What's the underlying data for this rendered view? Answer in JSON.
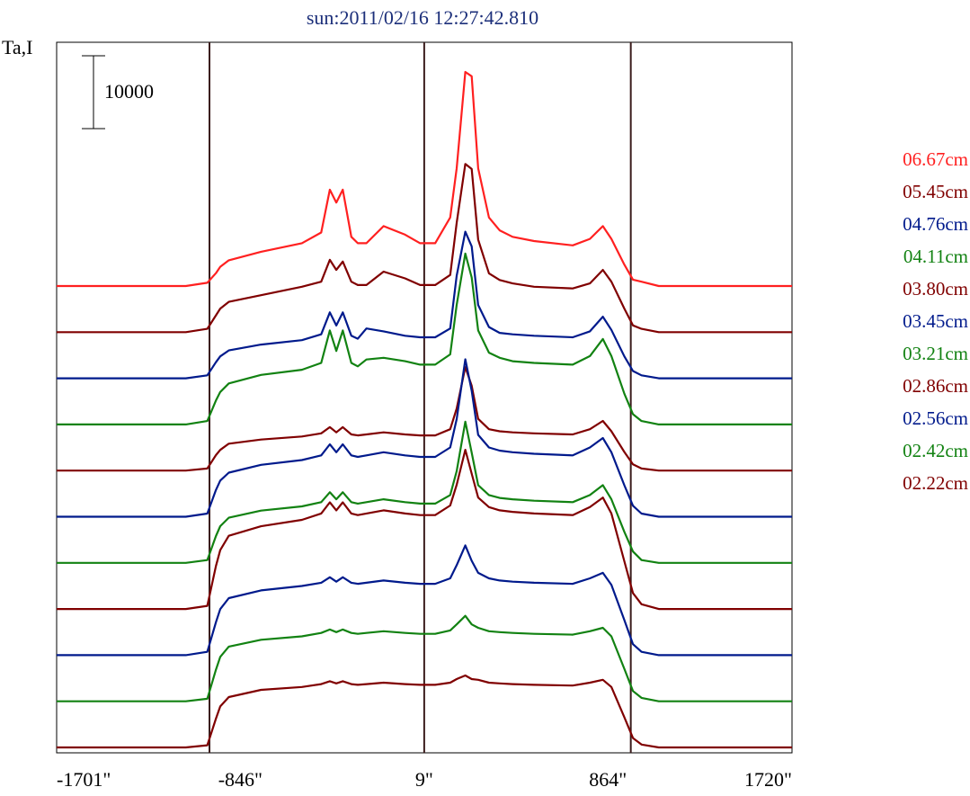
{
  "chart_data": {
    "type": "line",
    "title": "sun:2011/02/16 12:27:42.810",
    "ylabel": "Ta,I",
    "xlabel": "",
    "xlim": [
      -1701,
      1720
    ],
    "x_ticks": [
      {
        "value": -1701,
        "label": "-1701\""
      },
      {
        "value": -846,
        "label": "-846\""
      },
      {
        "value": 9,
        "label": "9\""
      },
      {
        "value": 864,
        "label": "864\""
      },
      {
        "value": 1720,
        "label": "1720\""
      }
    ],
    "vertical_lines": [
      -990,
      9,
      970
    ],
    "scale_bar": {
      "value": 10000,
      "label": "10000"
    },
    "legend_position": "right",
    "profile_x": [
      -1701,
      -1100,
      -1000,
      -960,
      -940,
      -900,
      -750,
      -560,
      -470,
      -430,
      -400,
      -370,
      -330,
      -300,
      -260,
      -180,
      -80,
      -10,
      60,
      130,
      160,
      200,
      230,
      260,
      310,
      360,
      420,
      520,
      700,
      780,
      840,
      880,
      940,
      980,
      1020,
      1100,
      1720
    ],
    "series": [
      {
        "name": "06.67cm",
        "color": "#ff2020",
        "rel": [
          0,
          0,
          0.015,
          0.06,
          0.09,
          0.12,
          0.16,
          0.2,
          0.25,
          0.45,
          0.39,
          0.45,
          0.23,
          0.2,
          0.2,
          0.28,
          0.24,
          0.2,
          0.2,
          0.32,
          0.55,
          1.0,
          0.98,
          0.55,
          0.32,
          0.26,
          0.23,
          0.21,
          0.19,
          0.22,
          0.28,
          0.22,
          0.1,
          0.03,
          0.02,
          0,
          0
        ]
      },
      {
        "name": "05.45cm",
        "color": "#800000",
        "rel": [
          0,
          0,
          0.02,
          0.1,
          0.14,
          0.18,
          0.22,
          0.27,
          0.3,
          0.43,
          0.37,
          0.42,
          0.3,
          0.28,
          0.28,
          0.36,
          0.32,
          0.28,
          0.28,
          0.34,
          0.65,
          1.0,
          0.97,
          0.55,
          0.35,
          0.31,
          0.29,
          0.27,
          0.26,
          0.29,
          0.37,
          0.3,
          0.14,
          0.04,
          0.02,
          0,
          0
        ]
      },
      {
        "name": "04.76cm",
        "color": "#001a8c",
        "rel": [
          0,
          0,
          0.02,
          0.11,
          0.15,
          0.19,
          0.23,
          0.26,
          0.3,
          0.45,
          0.36,
          0.45,
          0.29,
          0.27,
          0.34,
          0.32,
          0.29,
          0.28,
          0.28,
          0.34,
          0.7,
          1.0,
          0.9,
          0.5,
          0.35,
          0.31,
          0.3,
          0.29,
          0.28,
          0.32,
          0.42,
          0.33,
          0.15,
          0.05,
          0.02,
          0,
          0
        ]
      },
      {
        "name": "04.11cm",
        "color": "#128212",
        "rel": [
          0,
          0,
          0.02,
          0.14,
          0.19,
          0.24,
          0.29,
          0.32,
          0.36,
          0.55,
          0.43,
          0.55,
          0.36,
          0.34,
          0.38,
          0.39,
          0.37,
          0.35,
          0.35,
          0.41,
          0.7,
          1.0,
          0.86,
          0.55,
          0.42,
          0.39,
          0.37,
          0.36,
          0.35,
          0.4,
          0.5,
          0.4,
          0.18,
          0.06,
          0.02,
          0,
          0
        ]
      },
      {
        "name": "03.80cm",
        "color": "#800000",
        "rel": [
          0,
          0,
          0.02,
          0.15,
          0.2,
          0.26,
          0.3,
          0.33,
          0.36,
          0.42,
          0.37,
          0.42,
          0.35,
          0.34,
          0.35,
          0.37,
          0.35,
          0.34,
          0.34,
          0.4,
          0.6,
          1.0,
          0.82,
          0.5,
          0.4,
          0.38,
          0.37,
          0.36,
          0.35,
          0.4,
          0.48,
          0.38,
          0.18,
          0.06,
          0.02,
          0,
          0
        ]
      },
      {
        "name": "03.45cm",
        "color": "#001a8c",
        "rel": [
          0,
          0,
          0.02,
          0.17,
          0.23,
          0.28,
          0.33,
          0.36,
          0.39,
          0.46,
          0.41,
          0.46,
          0.39,
          0.38,
          0.39,
          0.41,
          0.39,
          0.38,
          0.38,
          0.44,
          0.62,
          1.0,
          0.8,
          0.52,
          0.44,
          0.42,
          0.41,
          0.4,
          0.39,
          0.44,
          0.5,
          0.41,
          0.2,
          0.07,
          0.02,
          0,
          0
        ]
      },
      {
        "name": "03.21cm",
        "color": "#128212",
        "rel": [
          0,
          0,
          0.02,
          0.19,
          0.26,
          0.32,
          0.37,
          0.4,
          0.43,
          0.5,
          0.45,
          0.5,
          0.43,
          0.42,
          0.43,
          0.45,
          0.43,
          0.42,
          0.42,
          0.48,
          0.65,
          1.0,
          0.78,
          0.55,
          0.48,
          0.46,
          0.45,
          0.44,
          0.43,
          0.48,
          0.55,
          0.45,
          0.22,
          0.08,
          0.02,
          0,
          0
        ]
      },
      {
        "name": "02.86cm",
        "color": "#800000",
        "rel": [
          0,
          0,
          0.02,
          0.27,
          0.37,
          0.46,
          0.52,
          0.56,
          0.6,
          0.67,
          0.62,
          0.67,
          0.6,
          0.59,
          0.6,
          0.62,
          0.6,
          0.59,
          0.59,
          0.65,
          0.78,
          1.0,
          0.85,
          0.7,
          0.64,
          0.62,
          0.61,
          0.6,
          0.59,
          0.64,
          0.7,
          0.6,
          0.3,
          0.1,
          0.03,
          0,
          0
        ]
      },
      {
        "name": "02.56cm",
        "color": "#001a8c",
        "rel": [
          0,
          0,
          0.03,
          0.3,
          0.42,
          0.52,
          0.59,
          0.63,
          0.66,
          0.71,
          0.67,
          0.71,
          0.66,
          0.65,
          0.66,
          0.68,
          0.66,
          0.65,
          0.65,
          0.7,
          0.82,
          1.0,
          0.86,
          0.75,
          0.7,
          0.68,
          0.67,
          0.66,
          0.65,
          0.7,
          0.75,
          0.64,
          0.32,
          0.1,
          0.03,
          0,
          0
        ]
      },
      {
        "name": "02.42cm",
        "color": "#128212",
        "rel": [
          0,
          0,
          0.03,
          0.37,
          0.52,
          0.64,
          0.72,
          0.76,
          0.8,
          0.84,
          0.81,
          0.84,
          0.8,
          0.79,
          0.8,
          0.82,
          0.8,
          0.79,
          0.79,
          0.83,
          0.9,
          1.0,
          0.9,
          0.86,
          0.82,
          0.81,
          0.8,
          0.79,
          0.78,
          0.82,
          0.86,
          0.76,
          0.38,
          0.12,
          0.04,
          0,
          0
        ]
      },
      {
        "name": "02.22cm",
        "color": "#800000",
        "rel": [
          0,
          0,
          0.03,
          0.4,
          0.57,
          0.7,
          0.8,
          0.84,
          0.88,
          0.92,
          0.89,
          0.92,
          0.88,
          0.87,
          0.88,
          0.9,
          0.88,
          0.87,
          0.87,
          0.9,
          0.95,
          1.0,
          0.95,
          0.94,
          0.9,
          0.89,
          0.88,
          0.87,
          0.86,
          0.9,
          0.94,
          0.84,
          0.42,
          0.13,
          0.04,
          0,
          0
        ]
      }
    ]
  }
}
